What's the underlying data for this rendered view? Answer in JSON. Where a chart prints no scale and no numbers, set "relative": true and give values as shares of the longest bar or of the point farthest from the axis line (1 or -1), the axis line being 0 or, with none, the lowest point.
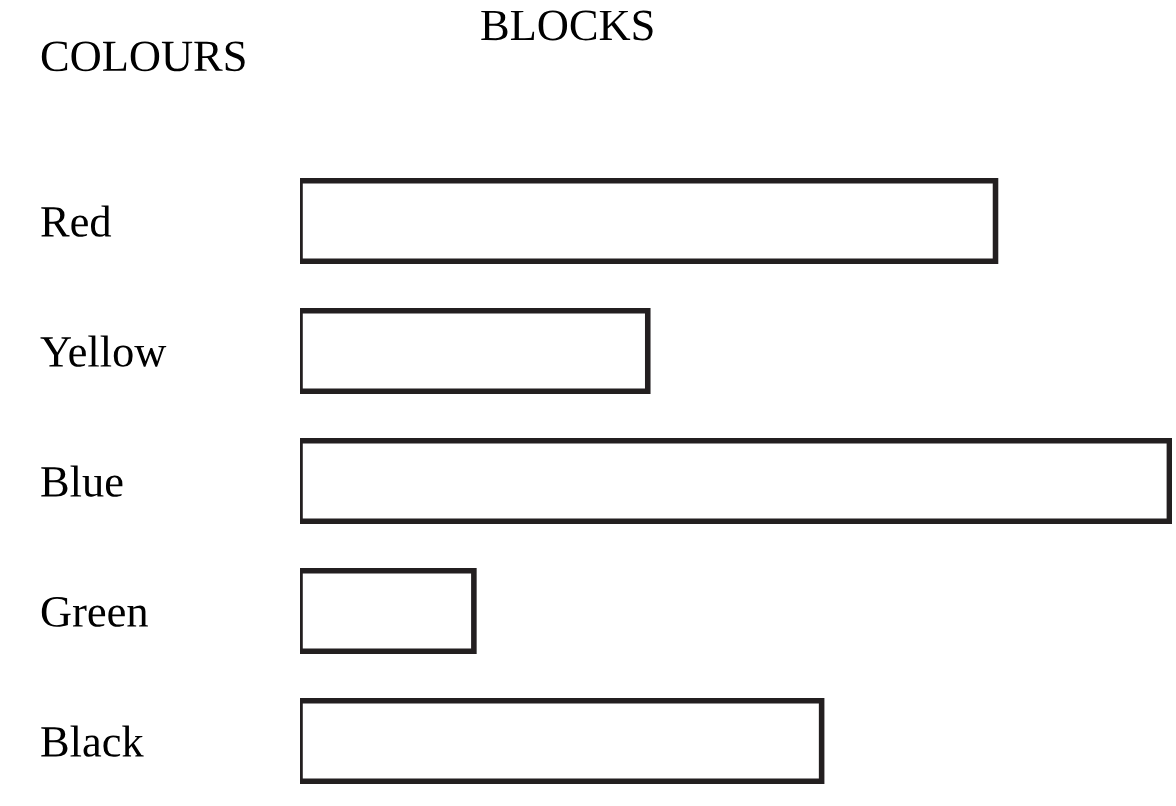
{
  "chart_data": {
    "type": "bar",
    "orientation": "horizontal",
    "relative": true,
    "xlabel": "BLOCKS",
    "ylabel": "COLOURS",
    "categories": [
      "Red",
      "Yellow",
      "Blue",
      "Green",
      "Black"
    ],
    "values": [
      0.8,
      0.4,
      1.0,
      0.2,
      0.6
    ],
    "color": "#ffffff",
    "grid": false,
    "legend": false
  }
}
